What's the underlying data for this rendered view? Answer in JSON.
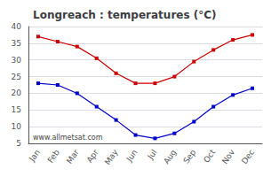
{
  "chart_data": {
    "type": "line",
    "title": "Longreach : temperatures (°C)",
    "categories": [
      "Jan",
      "Feb",
      "Mar",
      "Apr",
      "May",
      "Jun",
      "Jul",
      "Aug",
      "Sep",
      "Oct",
      "Nov",
      "Dec"
    ],
    "series": [
      {
        "color": "#cc0000",
        "marker": "square",
        "values": [
          37,
          35.5,
          34,
          30.5,
          26,
          23,
          23,
          25,
          29.5,
          33,
          36,
          37.5
        ]
      },
      {
        "color": "#0000cc",
        "marker": "square",
        "values": [
          23,
          22.5,
          20,
          16,
          12,
          7.5,
          6.5,
          8,
          11.5,
          16,
          19.5,
          21.5
        ]
      }
    ],
    "ylim": [
      5,
      40
    ],
    "yticks": [
      5,
      10,
      15,
      20,
      25,
      30,
      35,
      40
    ],
    "grid": true,
    "annotations": [
      "www.allmetsat.com"
    ]
  }
}
